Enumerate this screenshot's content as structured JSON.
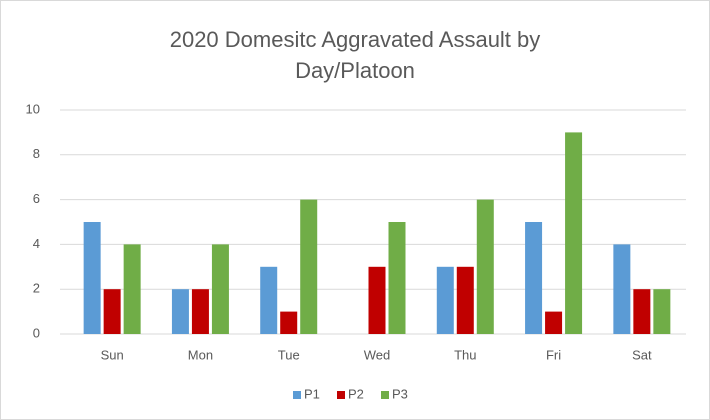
{
  "chart_data": {
    "type": "bar",
    "title": "2020 Domesitc Aggravated Assault by Day/Platoon",
    "categories": [
      "Sun",
      "Mon",
      "Tue",
      "Wed",
      "Thu",
      "Fri",
      "Sat"
    ],
    "series": [
      {
        "name": "P1",
        "color": "#5b9bd5",
        "values": [
          5,
          2,
          3,
          0,
          3,
          5,
          4
        ]
      },
      {
        "name": "P2",
        "color": "#c00000",
        "values": [
          2,
          2,
          1,
          3,
          3,
          1,
          2
        ]
      },
      {
        "name": "P3",
        "color": "#70ad47",
        "values": [
          4,
          4,
          6,
          5,
          6,
          9,
          2
        ]
      }
    ],
    "ylim": [
      0,
      10
    ],
    "yticks": [
      0,
      2,
      4,
      6,
      8,
      10
    ],
    "grid": true,
    "legend": "bottom"
  }
}
